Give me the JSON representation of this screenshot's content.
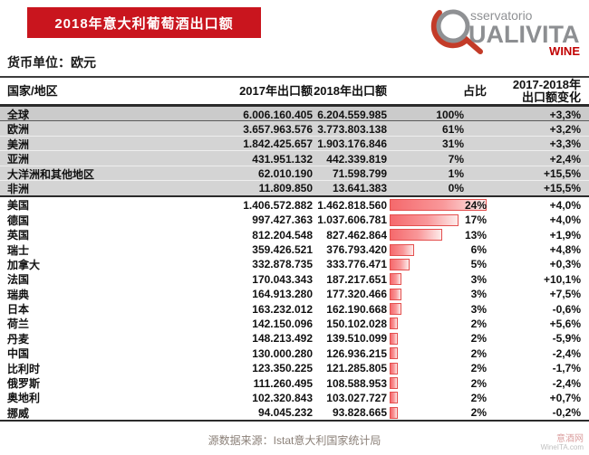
{
  "header": {
    "title": "2018年意大利葡萄酒出口额",
    "currency_note": "货币单位：欧元",
    "logo": {
      "line1": "sservatorio",
      "line2": "UALIVITA",
      "line3": "WINE"
    }
  },
  "table_head": {
    "col_region": "国家/地区",
    "col_2017": "2017年出口额",
    "col_2018": "2018年出口额",
    "col_share": "占比",
    "col_change_line1": "2017-2018年",
    "col_change_line2": "出口额变化"
  },
  "chart_data": {
    "type": "table",
    "title": "2018年意大利葡萄酒出口额",
    "unit": "欧元",
    "columns": [
      "国家/地区",
      "2017年出口额",
      "2018年出口额",
      "占比",
      "2017-2018年出口额变化"
    ],
    "region_rows": [
      {
        "name": "全球",
        "v2017": "6.006.160.405",
        "v2018": "6.204.559.985",
        "share": "100%",
        "change": "+3,3%"
      },
      {
        "name": "欧洲",
        "v2017": "3.657.963.576",
        "v2018": "3.773.803.138",
        "share": "61%",
        "change": "+3,2%"
      },
      {
        "name": "美洲",
        "v2017": "1.842.425.657",
        "v2018": "1.903.176.846",
        "share": "31%",
        "change": "+3,3%"
      },
      {
        "name": "亚洲",
        "v2017": "431.951.132",
        "v2018": "442.339.819",
        "share": "7%",
        "change": "+2,4%"
      },
      {
        "name": "大洋洲和其他地区",
        "v2017": "62.010.190",
        "v2018": "71.598.799",
        "share": "1%",
        "change": "+15,5%"
      },
      {
        "name": "非洲",
        "v2017": "11.809.850",
        "v2018": "13.641.383",
        "share": "0%",
        "change": "+15,5%"
      }
    ],
    "country_rows": [
      {
        "name": "美国",
        "v2017": "1.406.572.882",
        "v2018": "1.462.818.560",
        "share_pct": 24,
        "share": "24%",
        "change": "+4,0%"
      },
      {
        "name": "德国",
        "v2017": "997.427.363",
        "v2018": "1.037.606.781",
        "share_pct": 17,
        "share": "17%",
        "change": "+4,0%"
      },
      {
        "name": "英国",
        "v2017": "812.204.548",
        "v2018": "827.462.864",
        "share_pct": 13,
        "share": "13%",
        "change": "+1,9%"
      },
      {
        "name": "瑞士",
        "v2017": "359.426.521",
        "v2018": "376.793.420",
        "share_pct": 6,
        "share": "6%",
        "change": "+4,8%"
      },
      {
        "name": "加拿大",
        "v2017": "332.878.735",
        "v2018": "333.776.471",
        "share_pct": 5,
        "share": "5%",
        "change": "+0,3%"
      },
      {
        "name": "法国",
        "v2017": "170.043.343",
        "v2018": "187.217.651",
        "share_pct": 3,
        "share": "3%",
        "change": "+10,1%"
      },
      {
        "name": "瑞典",
        "v2017": "164.913.280",
        "v2018": "177.320.466",
        "share_pct": 3,
        "share": "3%",
        "change": "+7,5%"
      },
      {
        "name": "日本",
        "v2017": "163.232.012",
        "v2018": "162.190.668",
        "share_pct": 3,
        "share": "3%",
        "change": "-0,6%"
      },
      {
        "name": "荷兰",
        "v2017": "142.150.096",
        "v2018": "150.102.028",
        "share_pct": 2,
        "share": "2%",
        "change": "+5,6%"
      },
      {
        "name": "丹麦",
        "v2017": "148.213.492",
        "v2018": "139.510.099",
        "share_pct": 2,
        "share": "2%",
        "change": "-5,9%"
      },
      {
        "name": "中国",
        "v2017": "130.000.280",
        "v2018": "126.936.215",
        "share_pct": 2,
        "share": "2%",
        "change": "-2,4%"
      },
      {
        "name": "比利时",
        "v2017": "123.350.225",
        "v2018": "121.285.805",
        "share_pct": 2,
        "share": "2%",
        "change": "-1,7%"
      },
      {
        "name": "俄罗斯",
        "v2017": "111.260.495",
        "v2018": "108.588.953",
        "share_pct": 2,
        "share": "2%",
        "change": "-2,4%"
      },
      {
        "name": "奥地利",
        "v2017": "102.320.843",
        "v2018": "103.027.727",
        "share_pct": 2,
        "share": "2%",
        "change": "+0,7%"
      },
      {
        "name": "挪威",
        "v2017": "94.045.232",
        "v2018": "93.828.665",
        "share_pct": 2,
        "share": "2%",
        "change": "-0,2%"
      }
    ],
    "bar_color": "#f5696c",
    "bar_border_color": "#e4504f",
    "accent_red": "#c9151e"
  },
  "footer": {
    "source": "源数据来源：Istat意大利国家统计局",
    "watermark_line1": "意酒网",
    "watermark_line2": "WineITA.com"
  }
}
